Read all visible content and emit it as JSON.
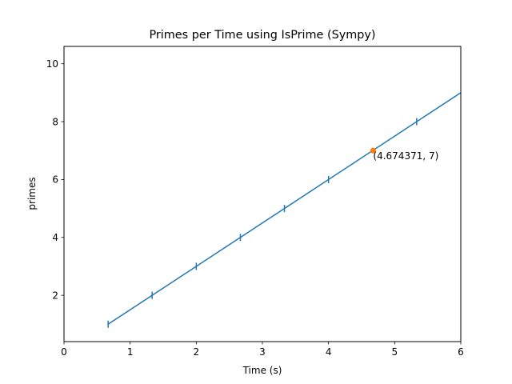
{
  "chart_data": {
    "type": "line",
    "title": "Primes per Time using IsPrime (Sympy)",
    "xlabel": "Time (s)",
    "ylabel": "primes",
    "xlim": [
      0,
      6
    ],
    "ylim": [
      0.4,
      10.6
    ],
    "xticks": [
      "0",
      "1",
      "2",
      "3",
      "4",
      "5",
      "6"
    ],
    "yticks": [
      "2",
      "4",
      "6",
      "8",
      "10"
    ],
    "grid": false,
    "line_color": "#1f77b4",
    "highlight_color": "#ff7f0e",
    "line": {
      "x": [
        0.667,
        6.0
      ],
      "y": [
        1.0,
        9.0
      ]
    },
    "markers": {
      "x": [
        0.667,
        1.333,
        2.0,
        2.667,
        3.333,
        4.0,
        5.333
      ],
      "y": [
        1,
        2,
        3,
        4,
        5,
        6,
        8
      ]
    },
    "highlight_point": {
      "x": 4.674371,
      "y": 7
    },
    "annotation": "(4.674371, 7)"
  }
}
